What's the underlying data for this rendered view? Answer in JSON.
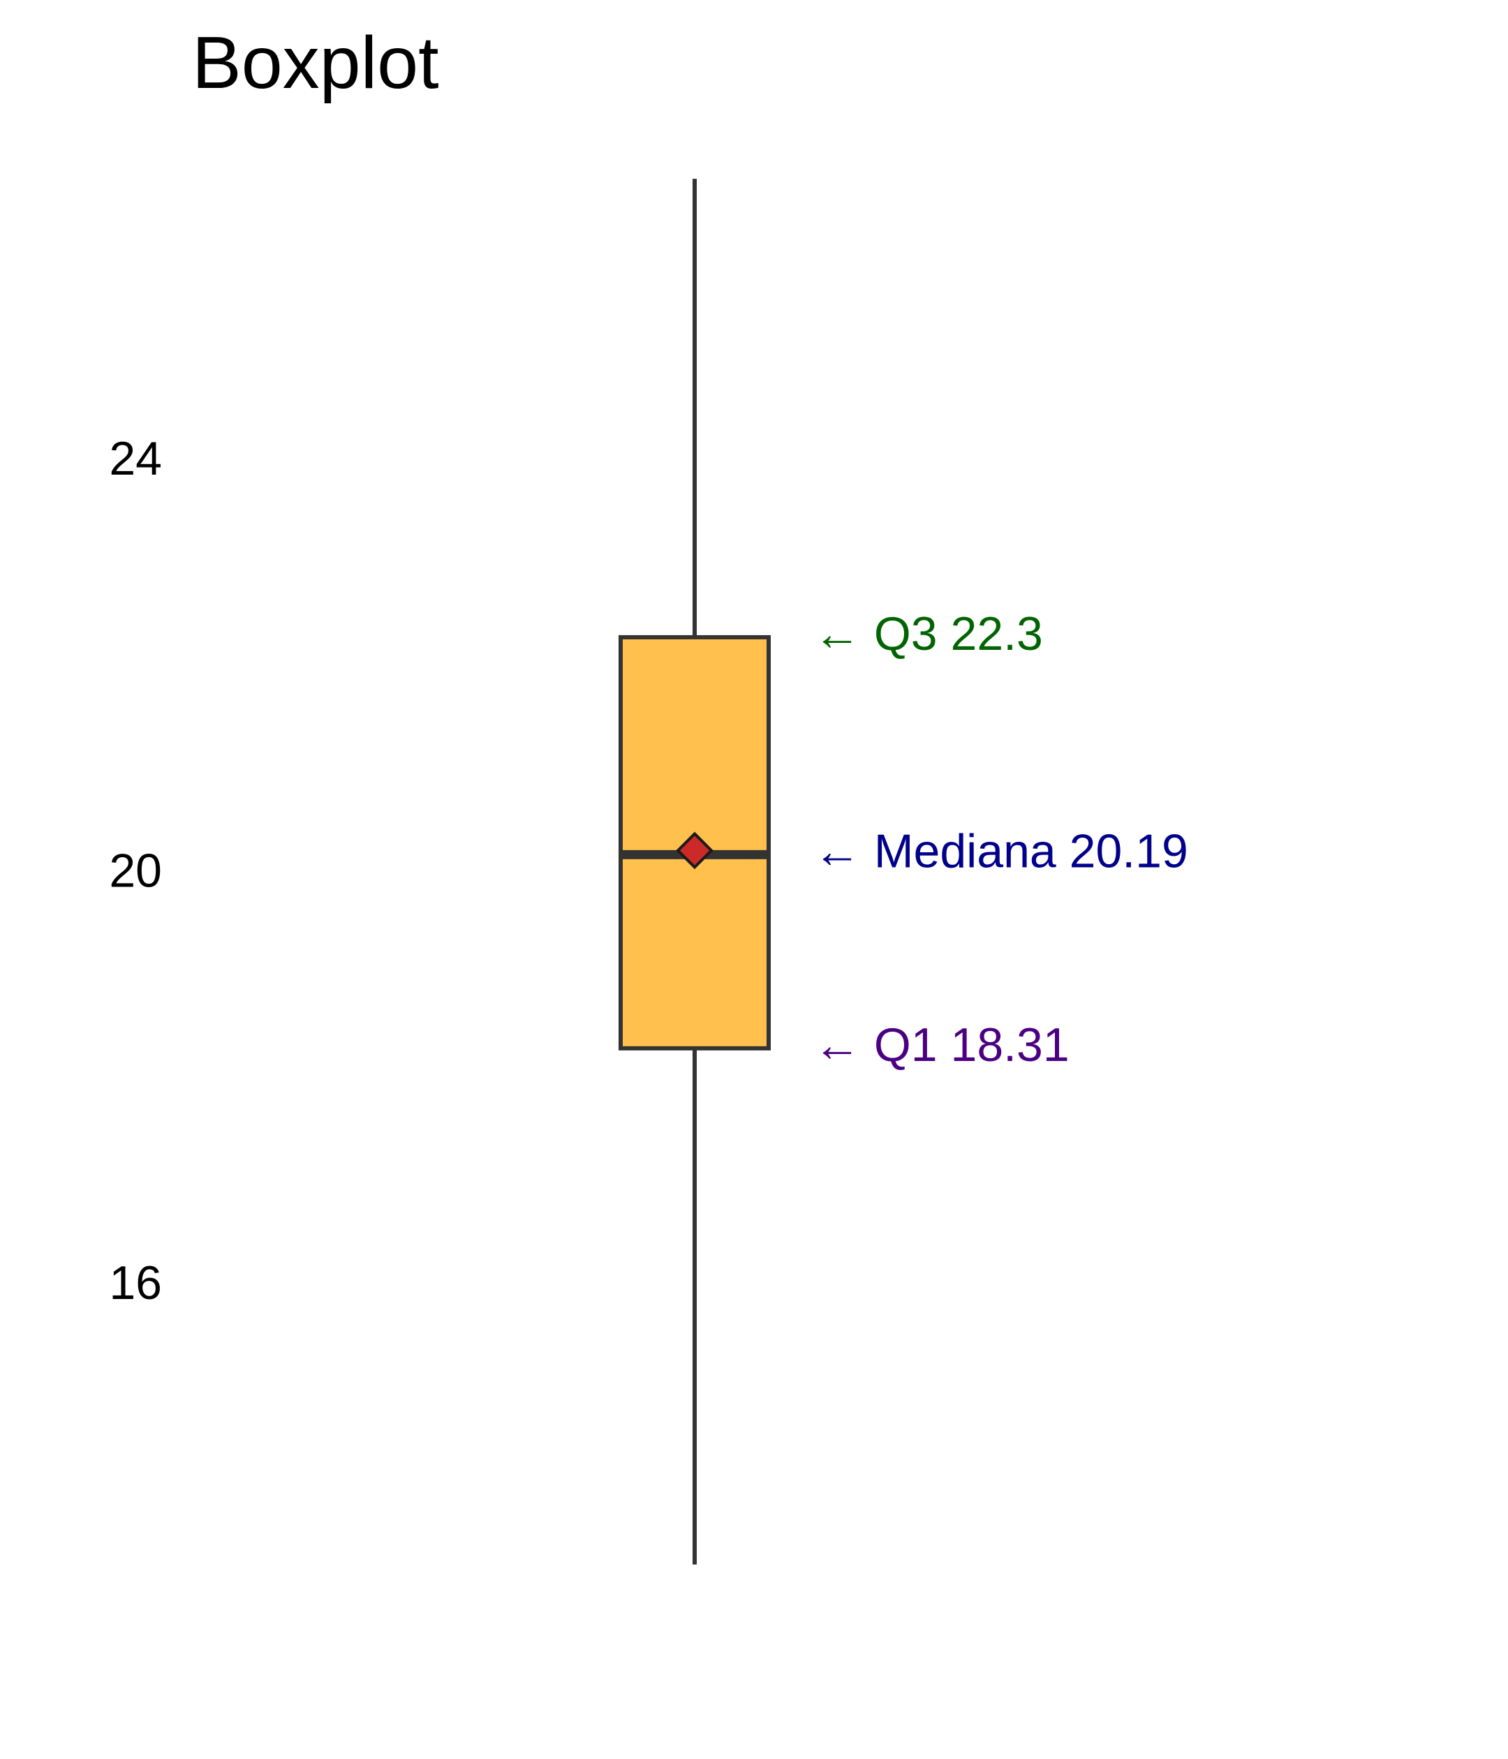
{
  "chart_data": {
    "type": "boxplot",
    "title": "Boxplot",
    "xlabel": "",
    "ylabel": "",
    "ylim": [
      12.95,
      26.5
    ],
    "yticks": [
      {
        "value": 16,
        "label": "16"
      },
      {
        "value": 20,
        "label": "20"
      },
      {
        "value": 24,
        "label": "24"
      }
    ],
    "grid": false,
    "series": [
      {
        "whisker_low": 13.3,
        "q1": 18.31,
        "median": 20.19,
        "mean": 20.23,
        "q3": 22.3,
        "whisker_high": 26.75
      }
    ],
    "annotations": [
      {
        "key": "q3",
        "value": 22.3,
        "text": "← Q3 22.3",
        "color": "#006400"
      },
      {
        "key": "median",
        "value": 20.19,
        "text": "← Mediana 20.19",
        "color": "#00008B"
      },
      {
        "key": "q1",
        "value": 18.31,
        "text": "← Q1 18.31",
        "color": "#4B0082"
      }
    ],
    "colors": {
      "box_fill": "#FFC04D",
      "box_stroke": "#333333",
      "mean_marker": "#CC2929"
    }
  }
}
